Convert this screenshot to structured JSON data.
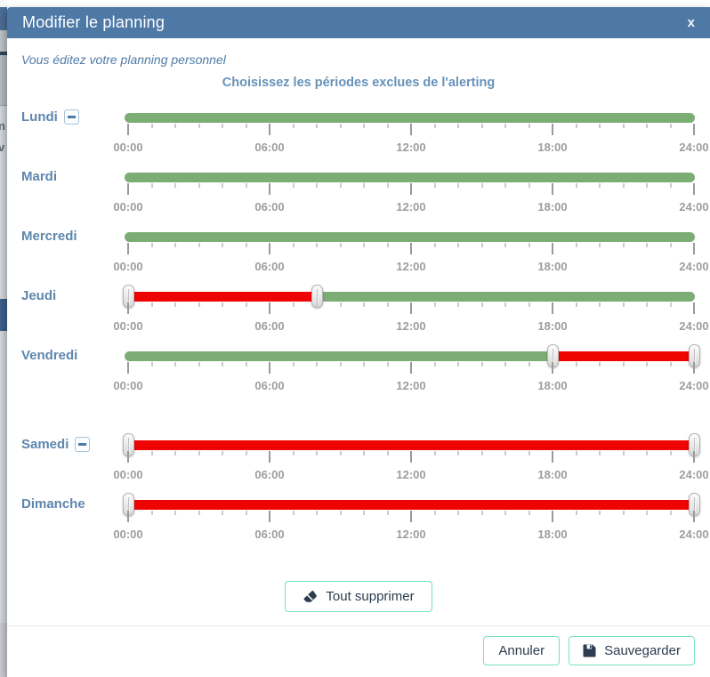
{
  "modal": {
    "title": "Modifier le planning",
    "close_icon": "x",
    "subtitle": "Vous éditez votre planning personnel",
    "section_title": "Choisissez les périodes exclues de l'alerting"
  },
  "colors": {
    "header_bg": "#4e79a6",
    "included_green": "#7cad74",
    "excluded_red": "#ef0404",
    "teal_button_border": "#75e0c7",
    "day_label_blue": "#5e86ae",
    "button_text": "#2b3d4f"
  },
  "axis": {
    "hours_total": 24,
    "major_tick_labels": [
      "00:00",
      "06:00",
      "12:00",
      "18:00",
      "24:00"
    ]
  },
  "days": [
    {
      "label": "Lundi",
      "collapse_icon": true,
      "extra_gap": false,
      "handles": [],
      "segments": [
        {
          "from": 0,
          "to": 24,
          "type": "included"
        }
      ]
    },
    {
      "label": "Mardi",
      "collapse_icon": false,
      "extra_gap": false,
      "handles": [],
      "segments": [
        {
          "from": 0,
          "to": 24,
          "type": "included"
        }
      ]
    },
    {
      "label": "Mercredi",
      "collapse_icon": false,
      "extra_gap": false,
      "handles": [],
      "segments": [
        {
          "from": 0,
          "to": 24,
          "type": "included"
        }
      ]
    },
    {
      "label": "Jeudi",
      "collapse_icon": false,
      "extra_gap": false,
      "handles": [
        0,
        8
      ],
      "segments": [
        {
          "from": 0,
          "to": 8,
          "type": "excluded"
        },
        {
          "from": 8,
          "to": 24,
          "type": "included"
        }
      ]
    },
    {
      "label": "Vendredi",
      "collapse_icon": false,
      "extra_gap": false,
      "handles": [
        18,
        24
      ],
      "segments": [
        {
          "from": 0,
          "to": 18,
          "type": "included"
        },
        {
          "from": 18,
          "to": 24,
          "type": "excluded"
        }
      ]
    },
    {
      "label": "Samedi",
      "collapse_icon": true,
      "extra_gap": true,
      "handles": [
        0,
        24
      ],
      "segments": [
        {
          "from": 0,
          "to": 24,
          "type": "excluded"
        }
      ]
    },
    {
      "label": "Dimanche",
      "collapse_icon": false,
      "extra_gap": false,
      "handles": [
        0,
        24
      ],
      "segments": [
        {
          "from": 0,
          "to": 24,
          "type": "excluded"
        }
      ]
    }
  ],
  "buttons": {
    "clear_all": "Tout supprimer",
    "cancel": "Annuler",
    "save": "Sauvegarder"
  },
  "background": {
    "fragments": [
      "n",
      "v"
    ]
  }
}
